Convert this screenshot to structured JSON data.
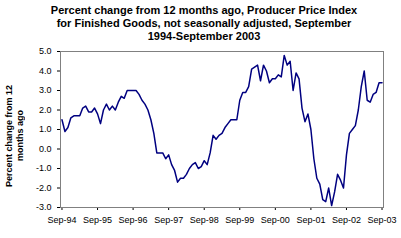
{
  "chart_data": {
    "type": "line",
    "title": "Percent change from 12 months ago, Producer Price Index  for Finished Goods, not seasonally adjusted, September 1994-September 2003",
    "ylabel": "Percent change from 12 months ago",
    "categories": [
      "Sep-94",
      null,
      null,
      null,
      null,
      null,
      null,
      null,
      null,
      null,
      null,
      null,
      "Sep-95",
      null,
      null,
      null,
      null,
      null,
      null,
      null,
      null,
      null,
      null,
      null,
      "Sep-96",
      null,
      null,
      null,
      null,
      null,
      null,
      null,
      null,
      null,
      null,
      null,
      "Sep-97",
      null,
      null,
      null,
      null,
      null,
      null,
      null,
      null,
      null,
      null,
      null,
      "Sep-98",
      null,
      null,
      null,
      null,
      null,
      null,
      null,
      null,
      null,
      null,
      null,
      "Sep-99",
      null,
      null,
      null,
      null,
      null,
      null,
      null,
      null,
      null,
      null,
      null,
      "Sep-00",
      null,
      null,
      null,
      null,
      null,
      null,
      null,
      null,
      null,
      null,
      null,
      "Sep-01",
      null,
      null,
      null,
      null,
      null,
      null,
      null,
      null,
      null,
      null,
      null,
      "Sep-02",
      null,
      null,
      null,
      null,
      null,
      null,
      null,
      null,
      null,
      null,
      null,
      "Sep-03"
    ],
    "values": [
      1.5,
      0.9,
      1.1,
      1.6,
      1.7,
      1.7,
      1.7,
      2.1,
      2.2,
      1.9,
      1.9,
      2.1,
      1.8,
      1.3,
      2.0,
      2.3,
      2.0,
      2.2,
      2.0,
      2.4,
      2.7,
      2.6,
      3.0,
      3.0,
      3.0,
      3.0,
      2.8,
      2.5,
      2.3,
      2.0,
      1.5,
      0.8,
      -0.2,
      -0.2,
      -0.2,
      -0.5,
      -0.3,
      -0.8,
      -1.1,
      -1.7,
      -1.5,
      -1.5,
      -1.3,
      -1.0,
      -0.8,
      -0.7,
      -1.0,
      -0.9,
      -0.6,
      -0.8,
      -0.2,
      0.7,
      0.5,
      0.7,
      0.8,
      1.1,
      1.3,
      1.5,
      1.5,
      1.5,
      2.5,
      2.9,
      2.9,
      3.2,
      4.1,
      4.2,
      4.3,
      3.5,
      4.3,
      4.0,
      3.4,
      3.6,
      3.6,
      3.8,
      3.7,
      4.8,
      4.3,
      4.5,
      3.0,
      3.9,
      3.6,
      2.1,
      1.4,
      1.8,
      1.0,
      -0.5,
      -1.5,
      -1.8,
      -2.6,
      -2.7,
      -2.0,
      -2.9,
      -2.2,
      -1.3,
      -1.6,
      -2.0,
      -0.3,
      0.8,
      1.0,
      1.2,
      2.0,
      3.2,
      4.0,
      2.5,
      2.4,
      2.8,
      2.9,
      3.4,
      3.4
    ],
    "color": "#000080",
    "ylim": [
      -3,
      5
    ],
    "yticks": [
      {
        "value": -3,
        "label": "-3.0"
      },
      {
        "value": -2,
        "label": "-2.0"
      },
      {
        "value": -1,
        "label": "-1.0"
      },
      {
        "value": 0,
        "label": "0.0"
      },
      {
        "value": 1,
        "label": "1.0"
      },
      {
        "value": 2,
        "label": "2.0"
      },
      {
        "value": 3,
        "label": "3.0"
      },
      {
        "value": 4,
        "label": "4.0"
      },
      {
        "value": 5,
        "label": "5.0"
      }
    ],
    "grid": false
  }
}
